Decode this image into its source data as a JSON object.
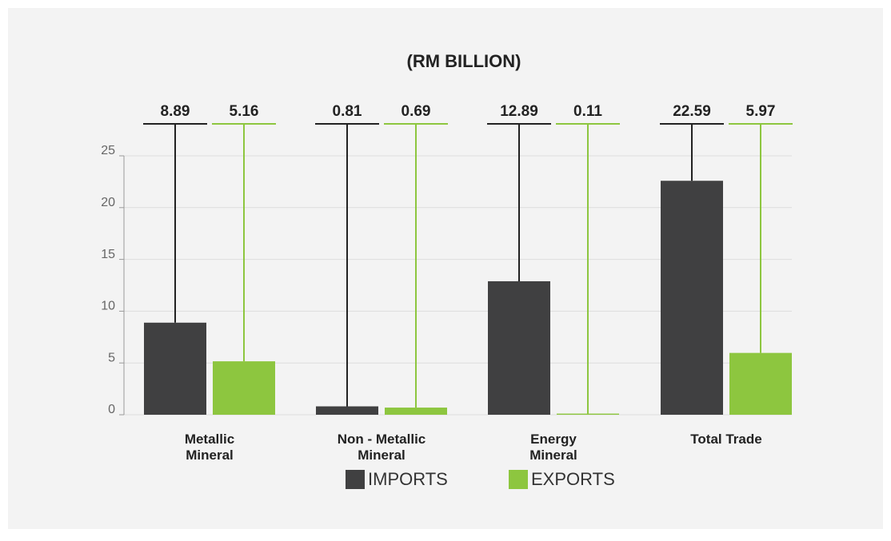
{
  "chart_data": {
    "type": "bar",
    "title": "(RM BILLION)",
    "categories": [
      "Metallic Mineral",
      "Non - Metallic Mineral",
      "Energy Mineral",
      "Total Trade"
    ],
    "series": [
      {
        "name": "IMPORTS",
        "color": "#404041",
        "values": [
          8.89,
          0.81,
          12.89,
          22.59
        ]
      },
      {
        "name": "EXPORTS",
        "color": "#8dc63f",
        "values": [
          5.16,
          0.69,
          0.11,
          5.97
        ]
      }
    ],
    "ylim": [
      0,
      25
    ],
    "yticks": [
      0,
      5,
      10,
      15,
      20,
      25
    ],
    "grid": true,
    "legend": "bottom"
  }
}
